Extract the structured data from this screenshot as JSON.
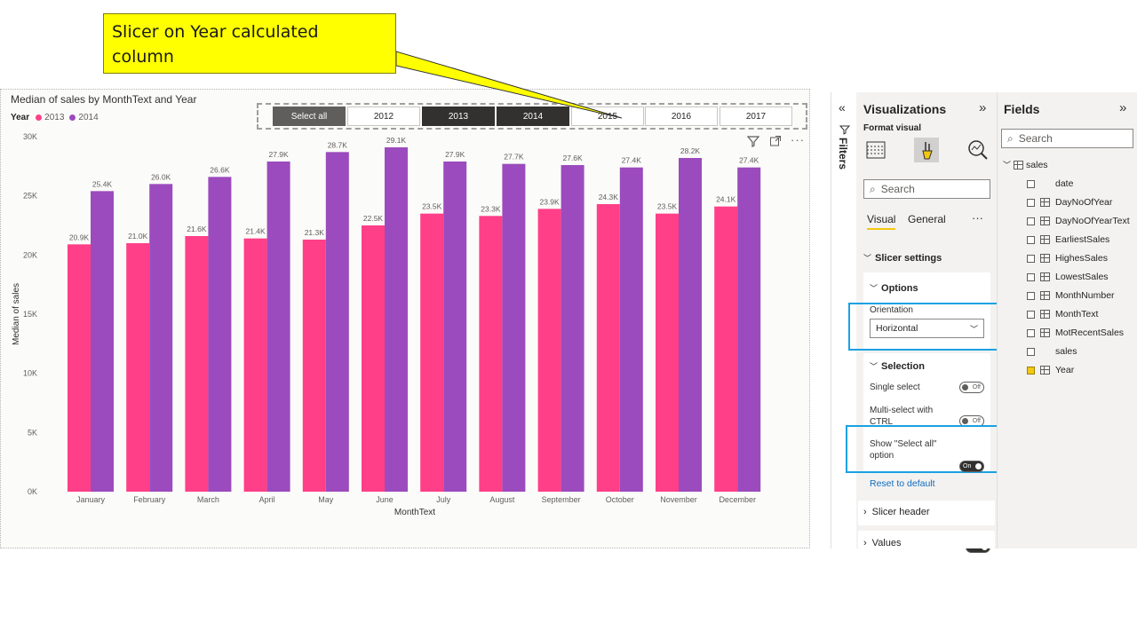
{
  "callout": {
    "text_line1": "Slicer on Year calculated",
    "text_line2": "column"
  },
  "slicer": {
    "buttons": [
      {
        "label": "Select all",
        "state": "all"
      },
      {
        "label": "2012",
        "state": "none"
      },
      {
        "label": "2013",
        "state": "selected"
      },
      {
        "label": "2014",
        "state": "selected"
      },
      {
        "label": "2015",
        "state": "none"
      },
      {
        "label": "2016",
        "state": "none"
      },
      {
        "label": "2017",
        "state": "none"
      }
    ]
  },
  "visual_header": {
    "filter_icon": "filter-icon",
    "focus_icon": "focus-mode-icon",
    "more_icon": "more-options-icon",
    "more_label": "···"
  },
  "chart_data": {
    "type": "bar",
    "title": "Median of sales by MonthText and Year",
    "legend_title": "Year",
    "xlabel": "MonthText",
    "ylabel": "Median of sales",
    "ylim": [
      0,
      30000
    ],
    "y_ticks": [
      "0K",
      "5K",
      "10K",
      "15K",
      "20K",
      "25K",
      "30K"
    ],
    "categories": [
      "January",
      "February",
      "March",
      "April",
      "May",
      "June",
      "July",
      "August",
      "September",
      "October",
      "November",
      "December"
    ],
    "series": [
      {
        "name": "2013",
        "color": "#ff3f87",
        "values": [
          20900,
          21000,
          21600,
          21400,
          21300,
          22500,
          23500,
          23300,
          23900,
          24300,
          23500,
          24100
        ],
        "labels": [
          "20.9K",
          "21.0K",
          "21.6K",
          "21.4K",
          "21.3K",
          "22.5K",
          "23.5K",
          "23.3K",
          "23.9K",
          "24.3K",
          "23.5K",
          "24.1K"
        ]
      },
      {
        "name": "2014",
        "color": "#9b4bbd",
        "values": [
          25400,
          26000,
          26600,
          27900,
          28700,
          29100,
          27900,
          27700,
          27600,
          27400,
          28200,
          27400
        ],
        "labels": [
          "25.4K",
          "26.0K",
          "26.6K",
          "27.9K",
          "28.7K",
          "29.1K",
          "27.9K",
          "27.7K",
          "27.6K",
          "27.4K",
          "28.2K",
          "27.4K"
        ]
      }
    ],
    "grid": false,
    "legend_position": "top-left"
  },
  "filters": {
    "label": "Filters",
    "collapse_icon": "collapse-left-icon",
    "funnel_icon": "filter-icon"
  },
  "visualizations": {
    "title": "Visualizations",
    "expand_icon": "double-chevron-right-icon",
    "subtitle": "Format visual",
    "tool_icons": [
      "build-visual-icon",
      "format-paintbrush-icon",
      "analytics-icon"
    ],
    "search_placeholder": "Search",
    "tabs": [
      "Visual",
      "General"
    ],
    "more": "···",
    "slicer_settings": "Slicer settings",
    "options": {
      "title": "Options",
      "orientation_label": "Orientation",
      "orientation_value": "Horizontal"
    },
    "selection": {
      "title": "Selection",
      "single_select": "Single select",
      "single_toggle": "Off",
      "multi_select": "Multi-select with CTRL",
      "multi_toggle": "Off",
      "show_select_all": "Show \"Select all\" option",
      "select_all_toggle": "On"
    },
    "reset": "Reset to default",
    "slicer_header": "Slicer header",
    "slicer_header_toggle": "On",
    "values": "Values"
  },
  "fields": {
    "title": "Fields",
    "expand_icon": "double-chevron-right-icon",
    "search_placeholder": "Search",
    "table": "sales",
    "items": [
      {
        "name": "date",
        "icon": "none",
        "checked": false
      },
      {
        "name": "DayNoOfYear",
        "icon": "calc-column-icon",
        "checked": false
      },
      {
        "name": "DayNoOfYearText",
        "icon": "calc-column-icon",
        "checked": false
      },
      {
        "name": "EarliestSales",
        "icon": "measure-icon",
        "checked": false
      },
      {
        "name": "HighesSales",
        "icon": "measure-icon",
        "checked": false
      },
      {
        "name": "LowestSales",
        "icon": "measure-icon",
        "checked": false
      },
      {
        "name": "MonthNumber",
        "icon": "measure-icon",
        "checked": false
      },
      {
        "name": "MonthText",
        "icon": "calc-column-icon",
        "checked": false
      },
      {
        "name": "MotRecentSales",
        "icon": "measure-icon",
        "checked": false
      },
      {
        "name": "sales",
        "icon": "none",
        "checked": false
      },
      {
        "name": "Year",
        "icon": "calc-column-icon",
        "checked": true
      }
    ]
  }
}
